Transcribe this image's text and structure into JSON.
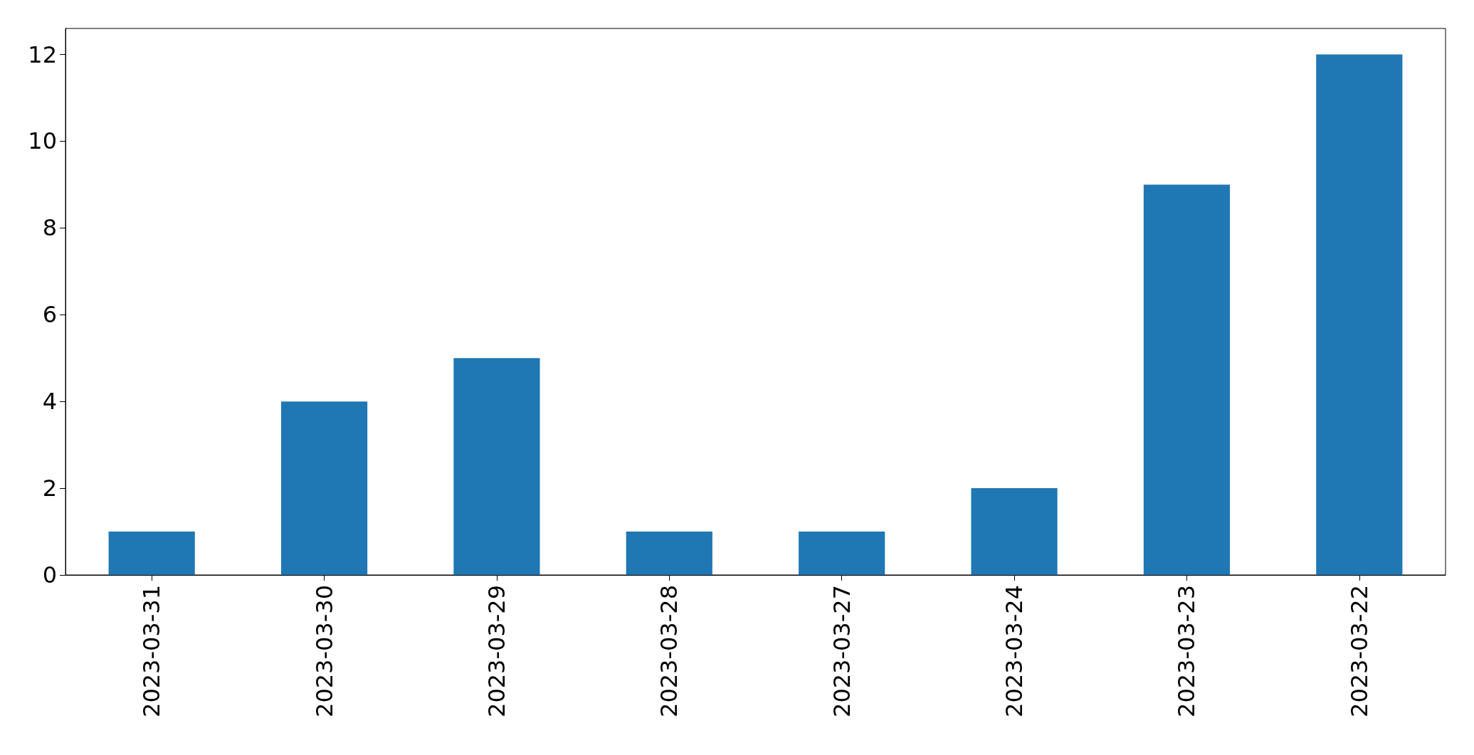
{
  "chart_data": {
    "type": "bar",
    "categories": [
      "2023-03-31",
      "2023-03-30",
      "2023-03-29",
      "2023-03-28",
      "2023-03-27",
      "2023-03-24",
      "2023-03-23",
      "2023-03-22"
    ],
    "values": [
      1,
      4,
      5,
      1,
      1,
      2,
      9,
      12
    ],
    "color": "#1f77b4",
    "ylim": [
      0,
      12.6
    ],
    "yticks": [
      0,
      2,
      4,
      6,
      8,
      10,
      12
    ],
    "grid": false
  }
}
